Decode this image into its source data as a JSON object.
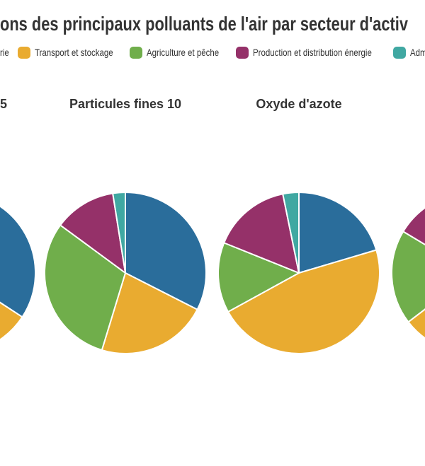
{
  "title": "ons des principaux polluants de l'air par secteur d'activ",
  "palette": {
    "blue": "#2A6D9B",
    "yellow": "#E9AB30",
    "green": "#70AE4B",
    "purple": "#953169",
    "teal": "#40A8A2"
  },
  "legend": {
    "items": [
      {
        "label": "rie",
        "color": "#2A6D9B",
        "swatch_visible": false
      },
      {
        "label": "Transport et stockage",
        "color": "#E9AB30",
        "swatch_visible": true
      },
      {
        "label": "Agriculture et pêche",
        "color": "#70AE4B",
        "swatch_visible": true
      },
      {
        "label": "Production et distribution énergie",
        "color": "#953169",
        "swatch_visible": true
      },
      {
        "label": "Adm",
        "color": "#40A8A2",
        "swatch_visible": true
      }
    ]
  },
  "chart_data": [
    {
      "type": "pie",
      "title": "5",
      "slices": [
        {
          "color_key": "blue",
          "hex": "#2A6D9B",
          "value_pct": 34.2
        },
        {
          "color_key": "yellow",
          "hex": "#E9AB30",
          "value_pct": 22.8
        },
        {
          "color_key": "green",
          "hex": "#70AE4B",
          "value_pct": 29.0
        },
        {
          "color_key": "purple",
          "hex": "#953169",
          "value_pct": 11.0
        },
        {
          "color_key": "teal",
          "hex": "#40A8A2",
          "value_pct": 3.0
        }
      ]
    },
    {
      "type": "pie",
      "title": "Particules fines 10",
      "slices": [
        {
          "color_key": "blue",
          "hex": "#2A6D9B",
          "value_pct": 32.5
        },
        {
          "color_key": "yellow",
          "hex": "#E9AB30",
          "value_pct": 22.2
        },
        {
          "color_key": "green",
          "hex": "#70AE4B",
          "value_pct": 30.4
        },
        {
          "color_key": "purple",
          "hex": "#953169",
          "value_pct": 12.4
        },
        {
          "color_key": "teal",
          "hex": "#40A8A2",
          "value_pct": 2.5
        }
      ]
    },
    {
      "type": "pie",
      "title": "Oxyde d'azote",
      "slices": [
        {
          "color_key": "blue",
          "hex": "#2A6D9B",
          "value_pct": 20.4
        },
        {
          "color_key": "yellow",
          "hex": "#E9AB30",
          "value_pct": 46.6
        },
        {
          "color_key": "green",
          "hex": "#70AE4B",
          "value_pct": 14.1
        },
        {
          "color_key": "purple",
          "hex": "#953169",
          "value_pct": 15.7
        },
        {
          "color_key": "teal",
          "hex": "#40A8A2",
          "value_pct": 3.2
        }
      ]
    },
    {
      "type": "pie",
      "title": "",
      "slices": [
        {
          "color_key": "blue",
          "hex": "#2A6D9B",
          "value_pct": 24.0
        },
        {
          "color_key": "yellow",
          "hex": "#E9AB30",
          "value_pct": 40.6
        },
        {
          "color_key": "green",
          "hex": "#70AE4B",
          "value_pct": 19.0
        },
        {
          "color_key": "purple",
          "hex": "#953169",
          "value_pct": 13.4
        },
        {
          "color_key": "teal",
          "hex": "#40A8A2",
          "value_pct": 3.0
        }
      ]
    }
  ]
}
